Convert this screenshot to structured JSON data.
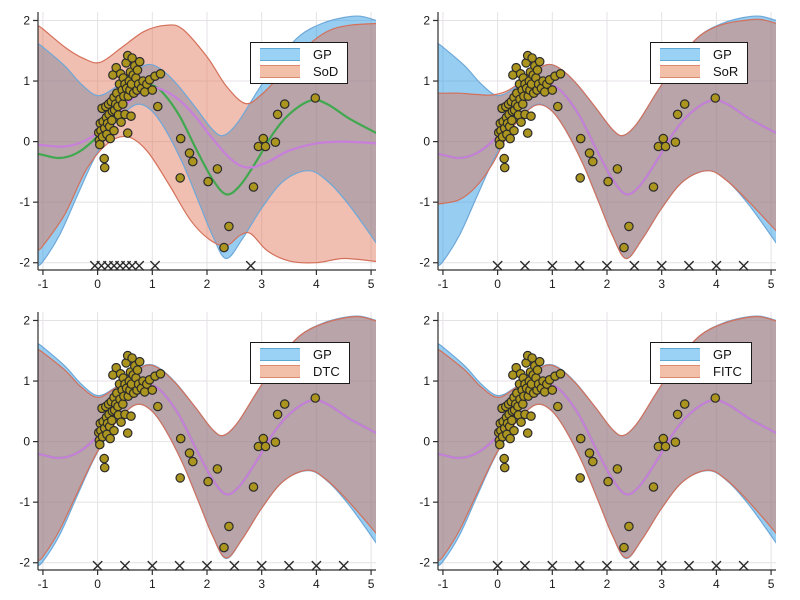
{
  "colors": {
    "background": "#ffffff",
    "gp_band_fill_rgba": "rgba(45,155,228,0.50)",
    "gp_band_edge": "#6FA8D8",
    "approx_band_fill_rgba": "rgba(225,115,85,0.46)",
    "approx_band_edge": "#D4705A",
    "gp_mean_green": "#40A84E",
    "mean_purple": "#C87FDB",
    "scatter_fill": "#AB951F",
    "scatter_edge": "#2B2B2B",
    "inducing_marker": "#2A2A2A",
    "grid": "#E4E2E4",
    "axis": "#2E2E2E",
    "tick_label": "#1a1a1a",
    "legend_border": "#1a1a1a",
    "legend_bg": "#FFFFFF",
    "legend_swatch_gp_fill": "#99D2F4",
    "legend_swatch_gp_edge": "#5FA8D3",
    "legend_swatch_approx_fill": "#F2BFA9",
    "legend_swatch_approx_edge": "#DC8A6E"
  },
  "chart_data": {
    "type": "line",
    "layout": "2x2",
    "xlim": [
      -1.09,
      5.09
    ],
    "ylim": [
      -2.12,
      2.14
    ],
    "x_ticks": [
      -1,
      0,
      1,
      2,
      3,
      4,
      5
    ],
    "y_ticks": [
      -2,
      -1,
      0,
      1,
      2
    ],
    "grid": true,
    "legend_position": "upper-right",
    "inducing_marker_y": -2.05,
    "subplots": [
      {
        "name": "sod",
        "legend": [
          "GP",
          "SoD"
        ],
        "inducing_x": [
          -0.05,
          0.07,
          0.19,
          0.3,
          0.41,
          0.52,
          0.63,
          0.76,
          1.05,
          2.8
        ],
        "bands": [
          {
            "series": "GP",
            "role": "gp",
            "upper": "gp_upper",
            "lower": "gp_lower"
          },
          {
            "series": "SoD",
            "role": "approx",
            "upper": "sod_upper",
            "lower": "sod_lower"
          }
        ],
        "lines": [
          {
            "series": "GP mean",
            "curve": "gp_mean",
            "color": "green"
          },
          {
            "series": "SoD mean",
            "curve": "sod_mean",
            "color": "purple"
          }
        ]
      },
      {
        "name": "sor",
        "legend": [
          "GP",
          "SoR"
        ],
        "inducing_x": [
          0,
          0.5,
          1,
          1.5,
          2,
          2.5,
          3,
          3.5,
          4,
          4.5
        ],
        "bands": [
          {
            "series": "GP",
            "role": "gp",
            "upper": "gp_upper",
            "lower": "gp_lower"
          },
          {
            "series": "SoR",
            "role": "approx",
            "upper": "sor_upper",
            "lower": "sor_lower"
          }
        ],
        "lines": [
          {
            "series": "GP mean",
            "curve": "gp_mean",
            "color": "green"
          },
          {
            "series": "SoR mean",
            "curve": "gp_mean",
            "color": "purple"
          }
        ]
      },
      {
        "name": "dtc",
        "legend": [
          "GP",
          "DTC"
        ],
        "inducing_x": [
          0,
          0.5,
          1,
          1.5,
          2,
          2.5,
          3,
          3.5,
          4,
          4.5
        ],
        "bands": [
          {
            "series": "GP",
            "role": "gp",
            "upper": "gp_upper",
            "lower": "gp_lower"
          },
          {
            "series": "DTC",
            "role": "approx",
            "upper": "dtc_upper",
            "lower": "dtc_lower"
          }
        ],
        "lines": [
          {
            "series": "GP mean",
            "curve": "gp_mean",
            "color": "green"
          },
          {
            "series": "DTC mean",
            "curve": "gp_mean",
            "color": "purple"
          }
        ]
      },
      {
        "name": "fitc",
        "legend": [
          "GP",
          "FITC"
        ],
        "inducing_x": [
          0,
          0.5,
          1,
          1.5,
          2,
          2.5,
          3,
          3.5,
          4,
          4.5
        ],
        "bands": [
          {
            "series": "GP",
            "role": "gp",
            "upper": "gp_upper",
            "lower": "gp_lower"
          },
          {
            "series": "FITC",
            "role": "approx",
            "upper": "dtc_upper",
            "lower": "dtc_lower"
          }
        ],
        "lines": [
          {
            "series": "GP mean",
            "curve": "gp_mean",
            "color": "green"
          },
          {
            "series": "FITC mean",
            "curve": "gp_mean",
            "color": "purple"
          }
        ]
      }
    ],
    "curves": {
      "gp_mean": [
        [
          -1.1,
          -0.2
        ],
        [
          -1,
          -0.22
        ],
        [
          -0.7,
          -0.27
        ],
        [
          -0.4,
          -0.2
        ],
        [
          -0.1,
          0.0
        ],
        [
          0.2,
          0.3
        ],
        [
          0.5,
          0.68
        ],
        [
          0.8,
          0.92
        ],
        [
          1.0,
          0.93
        ],
        [
          1.2,
          0.8
        ],
        [
          1.5,
          0.42
        ],
        [
          1.8,
          -0.12
        ],
        [
          2.1,
          -0.62
        ],
        [
          2.35,
          -0.87
        ],
        [
          2.6,
          -0.73
        ],
        [
          2.9,
          -0.33
        ],
        [
          3.2,
          0.12
        ],
        [
          3.5,
          0.45
        ],
        [
          3.9,
          0.68
        ],
        [
          4.2,
          0.62
        ],
        [
          4.6,
          0.38
        ],
        [
          5.1,
          0.14
        ]
      ],
      "sod_mean": [
        [
          -1.1,
          -0.05
        ],
        [
          -0.6,
          -0.08
        ],
        [
          -0.2,
          0.03
        ],
        [
          0.2,
          0.3
        ],
        [
          0.6,
          0.68
        ],
        [
          0.95,
          0.88
        ],
        [
          1.2,
          0.85
        ],
        [
          1.5,
          0.68
        ],
        [
          1.8,
          0.4
        ],
        [
          2.1,
          0.05
        ],
        [
          2.45,
          -0.3
        ],
        [
          2.75,
          -0.43
        ],
        [
          3.1,
          -0.34
        ],
        [
          3.5,
          -0.15
        ],
        [
          4.0,
          -0.03
        ],
        [
          4.5,
          0.0
        ],
        [
          5.1,
          -0.03
        ]
      ],
      "gp_upper": [
        [
          -1.1,
          1.62
        ],
        [
          -1,
          1.56
        ],
        [
          -0.6,
          1.25
        ],
        [
          -0.3,
          0.95
        ],
        [
          0,
          0.76
        ],
        [
          0.3,
          0.88
        ],
        [
          0.6,
          1.1
        ],
        [
          0.9,
          1.27
        ],
        [
          1.15,
          1.2
        ],
        [
          1.45,
          0.95
        ],
        [
          1.8,
          0.55
        ],
        [
          2.1,
          0.2
        ],
        [
          2.3,
          0.1
        ],
        [
          2.55,
          0.3
        ],
        [
          2.9,
          0.8
        ],
        [
          3.3,
          1.35
        ],
        [
          3.7,
          1.75
        ],
        [
          4.1,
          1.95
        ],
        [
          4.5,
          2.05
        ],
        [
          4.8,
          2.07
        ],
        [
          5.1,
          2.0
        ]
      ],
      "gp_lower": [
        [
          -1.1,
          -2.05
        ],
        [
          -1,
          -1.98
        ],
        [
          -0.7,
          -1.55
        ],
        [
          -0.4,
          -0.95
        ],
        [
          -0.1,
          -0.35
        ],
        [
          0.2,
          0.15
        ],
        [
          0.5,
          0.48
        ],
        [
          0.75,
          0.62
        ],
        [
          1.0,
          0.5
        ],
        [
          1.25,
          0.18
        ],
        [
          1.55,
          -0.35
        ],
        [
          1.85,
          -1.0
        ],
        [
          2.1,
          -1.55
        ],
        [
          2.35,
          -1.93
        ],
        [
          2.65,
          -1.6
        ],
        [
          3.0,
          -1.1
        ],
        [
          3.4,
          -0.65
        ],
        [
          3.85,
          -0.48
        ],
        [
          4.2,
          -0.65
        ],
        [
          4.6,
          -1.05
        ],
        [
          5.1,
          -1.68
        ]
      ],
      "sod_upper": [
        [
          -1.1,
          1.92
        ],
        [
          -1,
          1.86
        ],
        [
          -0.6,
          1.56
        ],
        [
          -0.25,
          1.37
        ],
        [
          0.05,
          1.31
        ],
        [
          0.45,
          1.56
        ],
        [
          0.85,
          1.82
        ],
        [
          1.25,
          1.92
        ],
        [
          1.55,
          1.86
        ],
        [
          2.0,
          1.4
        ],
        [
          2.35,
          0.92
        ],
        [
          2.7,
          0.63
        ],
        [
          3.0,
          0.78
        ],
        [
          3.4,
          1.15
        ],
        [
          3.8,
          1.55
        ],
        [
          4.2,
          1.82
        ],
        [
          4.6,
          1.92
        ],
        [
          5.1,
          1.95
        ]
      ],
      "sod_lower": [
        [
          -1.1,
          -1.8
        ],
        [
          -1,
          -1.72
        ],
        [
          -0.6,
          -1.2
        ],
        [
          -0.2,
          -0.45
        ],
        [
          0.2,
          -0.02
        ],
        [
          0.55,
          0.08
        ],
        [
          0.9,
          -0.15
        ],
        [
          1.3,
          -0.7
        ],
        [
          1.7,
          -1.3
        ],
        [
          2.05,
          -1.62
        ],
        [
          2.35,
          -1.72
        ],
        [
          2.6,
          -1.55
        ],
        [
          2.8,
          -1.52
        ],
        [
          3.1,
          -1.8
        ],
        [
          3.5,
          -1.97
        ],
        [
          4.0,
          -2.0
        ],
        [
          4.5,
          -1.93
        ],
        [
          5.1,
          -1.98
        ]
      ],
      "sor_upper": [
        [
          -1.1,
          0.8
        ],
        [
          -1,
          0.8
        ],
        [
          -0.7,
          0.8
        ],
        [
          -0.4,
          0.78
        ],
        [
          -0.1,
          0.77
        ],
        [
          0.2,
          0.85
        ],
        [
          0.6,
          1.1
        ],
        [
          0.9,
          1.27
        ],
        [
          1.15,
          1.2
        ],
        [
          1.45,
          0.95
        ],
        [
          1.8,
          0.55
        ],
        [
          2.1,
          0.2
        ],
        [
          2.3,
          0.1
        ],
        [
          2.55,
          0.3
        ],
        [
          2.9,
          0.8
        ],
        [
          3.3,
          1.35
        ],
        [
          3.7,
          1.75
        ],
        [
          4.1,
          1.93
        ],
        [
          4.5,
          2.0
        ],
        [
          4.8,
          2.02
        ],
        [
          5.1,
          1.95
        ]
      ],
      "sor_lower": [
        [
          -1.1,
          -1.03
        ],
        [
          -1,
          -1.02
        ],
        [
          -0.7,
          -0.96
        ],
        [
          -0.4,
          -0.75
        ],
        [
          -0.1,
          -0.38
        ],
        [
          0.2,
          0.13
        ],
        [
          0.5,
          0.47
        ],
        [
          0.75,
          0.61
        ],
        [
          1.0,
          0.5
        ],
        [
          1.25,
          0.18
        ],
        [
          1.55,
          -0.35
        ],
        [
          1.85,
          -1.0
        ],
        [
          2.1,
          -1.55
        ],
        [
          2.35,
          -1.93
        ],
        [
          2.65,
          -1.6
        ],
        [
          3.0,
          -1.1
        ],
        [
          3.4,
          -0.65
        ],
        [
          3.85,
          -0.48
        ],
        [
          4.2,
          -0.65
        ],
        [
          4.6,
          -1.0
        ],
        [
          5.1,
          -1.48
        ]
      ],
      "dtc_upper": [
        [
          -1.1,
          1.52
        ],
        [
          -1,
          1.47
        ],
        [
          -0.6,
          1.18
        ],
        [
          -0.3,
          0.9
        ],
        [
          0,
          0.73
        ],
        [
          0.3,
          0.87
        ],
        [
          0.6,
          1.09
        ],
        [
          0.9,
          1.26
        ],
        [
          1.15,
          1.19
        ],
        [
          1.45,
          0.94
        ],
        [
          1.8,
          0.55
        ],
        [
          2.1,
          0.2
        ],
        [
          2.3,
          0.1
        ],
        [
          2.55,
          0.3
        ],
        [
          2.9,
          0.8
        ],
        [
          3.3,
          1.35
        ],
        [
          3.7,
          1.75
        ],
        [
          4.1,
          1.94
        ],
        [
          4.5,
          2.04
        ],
        [
          4.8,
          2.06
        ],
        [
          5.1,
          1.99
        ]
      ],
      "dtc_lower": [
        [
          -1.1,
          -1.97
        ],
        [
          -1,
          -1.9
        ],
        [
          -0.7,
          -1.47
        ],
        [
          -0.4,
          -0.9
        ],
        [
          -0.1,
          -0.33
        ],
        [
          0.2,
          0.15
        ],
        [
          0.5,
          0.48
        ],
        [
          0.75,
          0.62
        ],
        [
          1.0,
          0.5
        ],
        [
          1.25,
          0.18
        ],
        [
          1.55,
          -0.35
        ],
        [
          1.85,
          -1.0
        ],
        [
          2.1,
          -1.55
        ],
        [
          2.35,
          -1.92
        ],
        [
          2.65,
          -1.6
        ],
        [
          3.0,
          -1.1
        ],
        [
          3.4,
          -0.65
        ],
        [
          3.85,
          -0.47
        ],
        [
          4.2,
          -0.64
        ],
        [
          4.6,
          -1.0
        ],
        [
          5.1,
          -1.52
        ]
      ]
    },
    "scatter": [
      [
        0.02,
        0.15
      ],
      [
        0.03,
        0.02
      ],
      [
        0.04,
        -0.05
      ],
      [
        0.05,
        0.3
      ],
      [
        0.06,
        0.18
      ],
      [
        0.08,
        0.55
      ],
      [
        0.09,
        0.08
      ],
      [
        0.1,
        0.33
      ],
      [
        0.12,
        -0.28
      ],
      [
        0.13,
        -0.43
      ],
      [
        0.13,
        0.22
      ],
      [
        0.15,
        0.58
      ],
      [
        0.16,
        0.4
      ],
      [
        0.17,
        0.12
      ],
      [
        0.18,
        0.3
      ],
      [
        0.2,
        0.62
      ],
      [
        0.21,
        0.45
      ],
      [
        0.22,
        0.25
      ],
      [
        0.23,
        0.05
      ],
      [
        0.25,
        0.66
      ],
      [
        0.26,
        0.35
      ],
      [
        0.27,
        0.5
      ],
      [
        0.28,
        1.1
      ],
      [
        0.3,
        0.73
      ],
      [
        0.3,
        0.18
      ],
      [
        0.31,
        0.52
      ],
      [
        0.33,
        0.62
      ],
      [
        0.34,
        1.22
      ],
      [
        0.35,
        0.8
      ],
      [
        0.37,
        0.58
      ],
      [
        0.38,
        0.44
      ],
      [
        0.4,
        0.95
      ],
      [
        0.41,
        0.7
      ],
      [
        0.42,
        1.12
      ],
      [
        0.43,
        0.32
      ],
      [
        0.45,
        0.85
      ],
      [
        0.46,
        0.62
      ],
      [
        0.47,
        1.05
      ],
      [
        0.48,
        0.75
      ],
      [
        0.5,
        0.95
      ],
      [
        0.5,
        0.45
      ],
      [
        0.52,
        1.3
      ],
      [
        0.53,
        0.88
      ],
      [
        0.55,
        1.42
      ],
      [
        0.55,
        0.14
      ],
      [
        0.56,
        0.75
      ],
      [
        0.58,
        1.0
      ],
      [
        0.59,
        0.85
      ],
      [
        0.6,
        1.15
      ],
      [
        0.61,
        0.42
      ],
      [
        0.62,
        0.95
      ],
      [
        0.63,
        1.38
      ],
      [
        0.65,
        1.1
      ],
      [
        0.66,
        0.8
      ],
      [
        0.68,
        1.25
      ],
      [
        0.7,
        1.05
      ],
      [
        0.72,
        0.85
      ],
      [
        0.73,
        1.18
      ],
      [
        0.75,
        0.95
      ],
      [
        0.77,
        1.32
      ],
      [
        0.8,
        0.88
      ],
      [
        0.83,
        1.0
      ],
      [
        0.86,
        0.82
      ],
      [
        0.9,
        0.95
      ],
      [
        0.95,
        1.02
      ],
      [
        1.0,
        0.85
      ],
      [
        1.05,
        1.08
      ],
      [
        1.1,
        0.58
      ],
      [
        1.15,
        1.12
      ],
      [
        1.51,
        -0.6
      ],
      [
        1.52,
        0.05
      ],
      [
        1.68,
        -0.19
      ],
      [
        1.74,
        -0.33
      ],
      [
        2.02,
        -0.66
      ],
      [
        2.19,
        -0.45
      ],
      [
        2.31,
        -1.75
      ],
      [
        2.4,
        -1.4
      ],
      [
        2.85,
        -0.75
      ],
      [
        2.94,
        -0.08
      ],
      [
        3.03,
        0.05
      ],
      [
        3.07,
        -0.08
      ],
      [
        3.25,
        -0.01
      ],
      [
        3.29,
        0.45
      ],
      [
        3.42,
        0.62
      ],
      [
        3.98,
        0.72
      ]
    ]
  }
}
